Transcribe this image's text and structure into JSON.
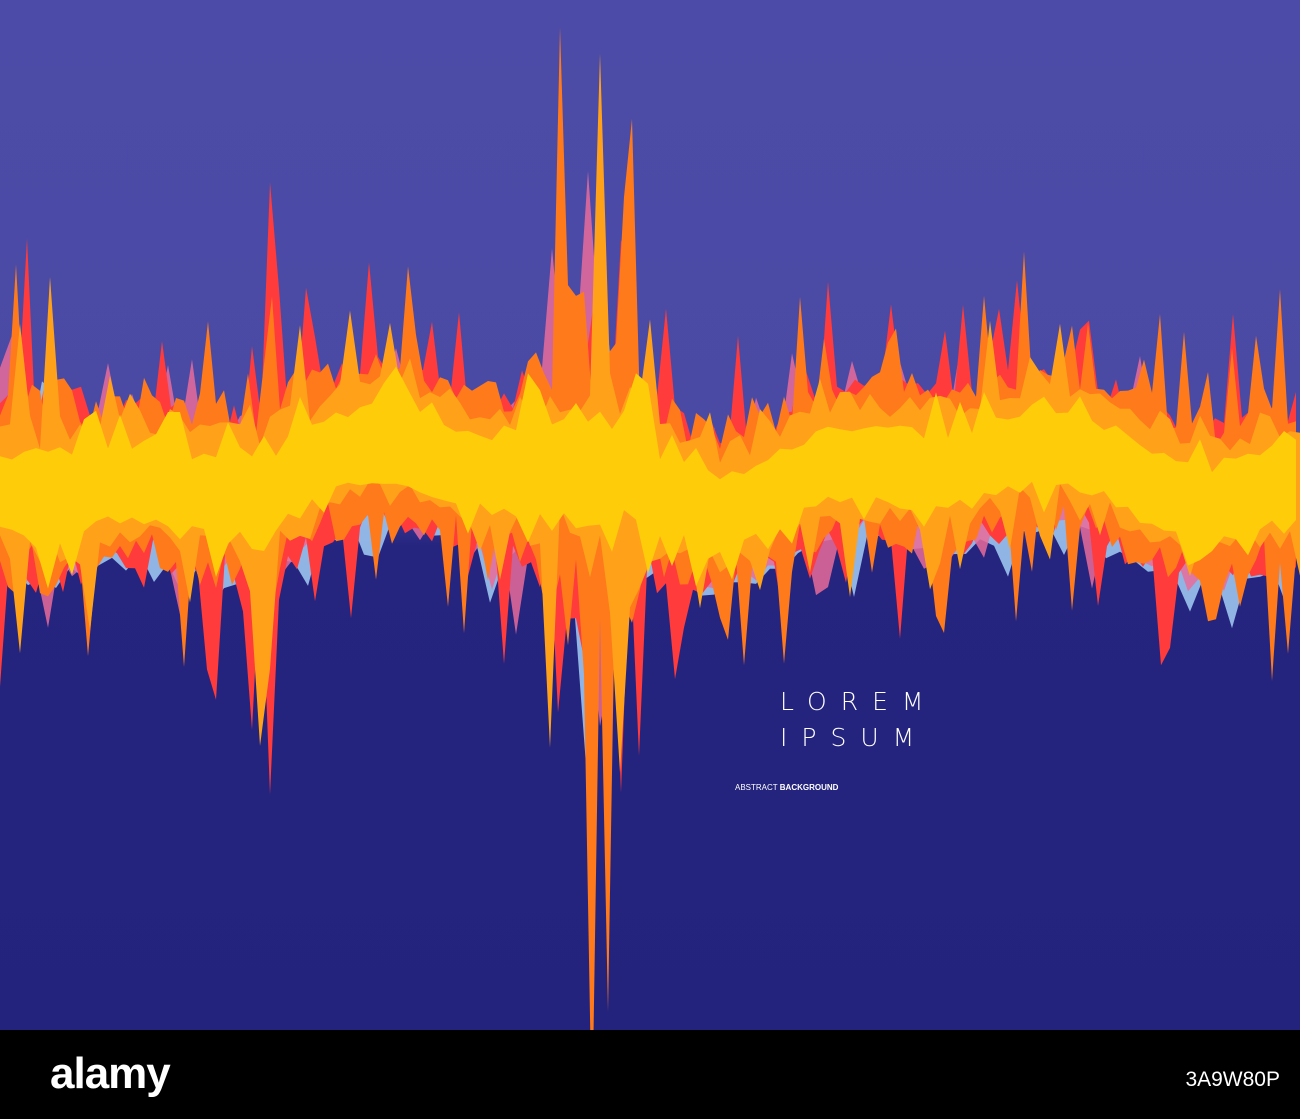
{
  "poster": {
    "headline_line1": "LOREM",
    "headline_line2": "IPSUM",
    "tag_light": "ABSTRACT",
    "tag_bold": "BACKGROUND"
  },
  "footer": {
    "brand": "alamy",
    "image_id": "3A9W80P"
  }
}
